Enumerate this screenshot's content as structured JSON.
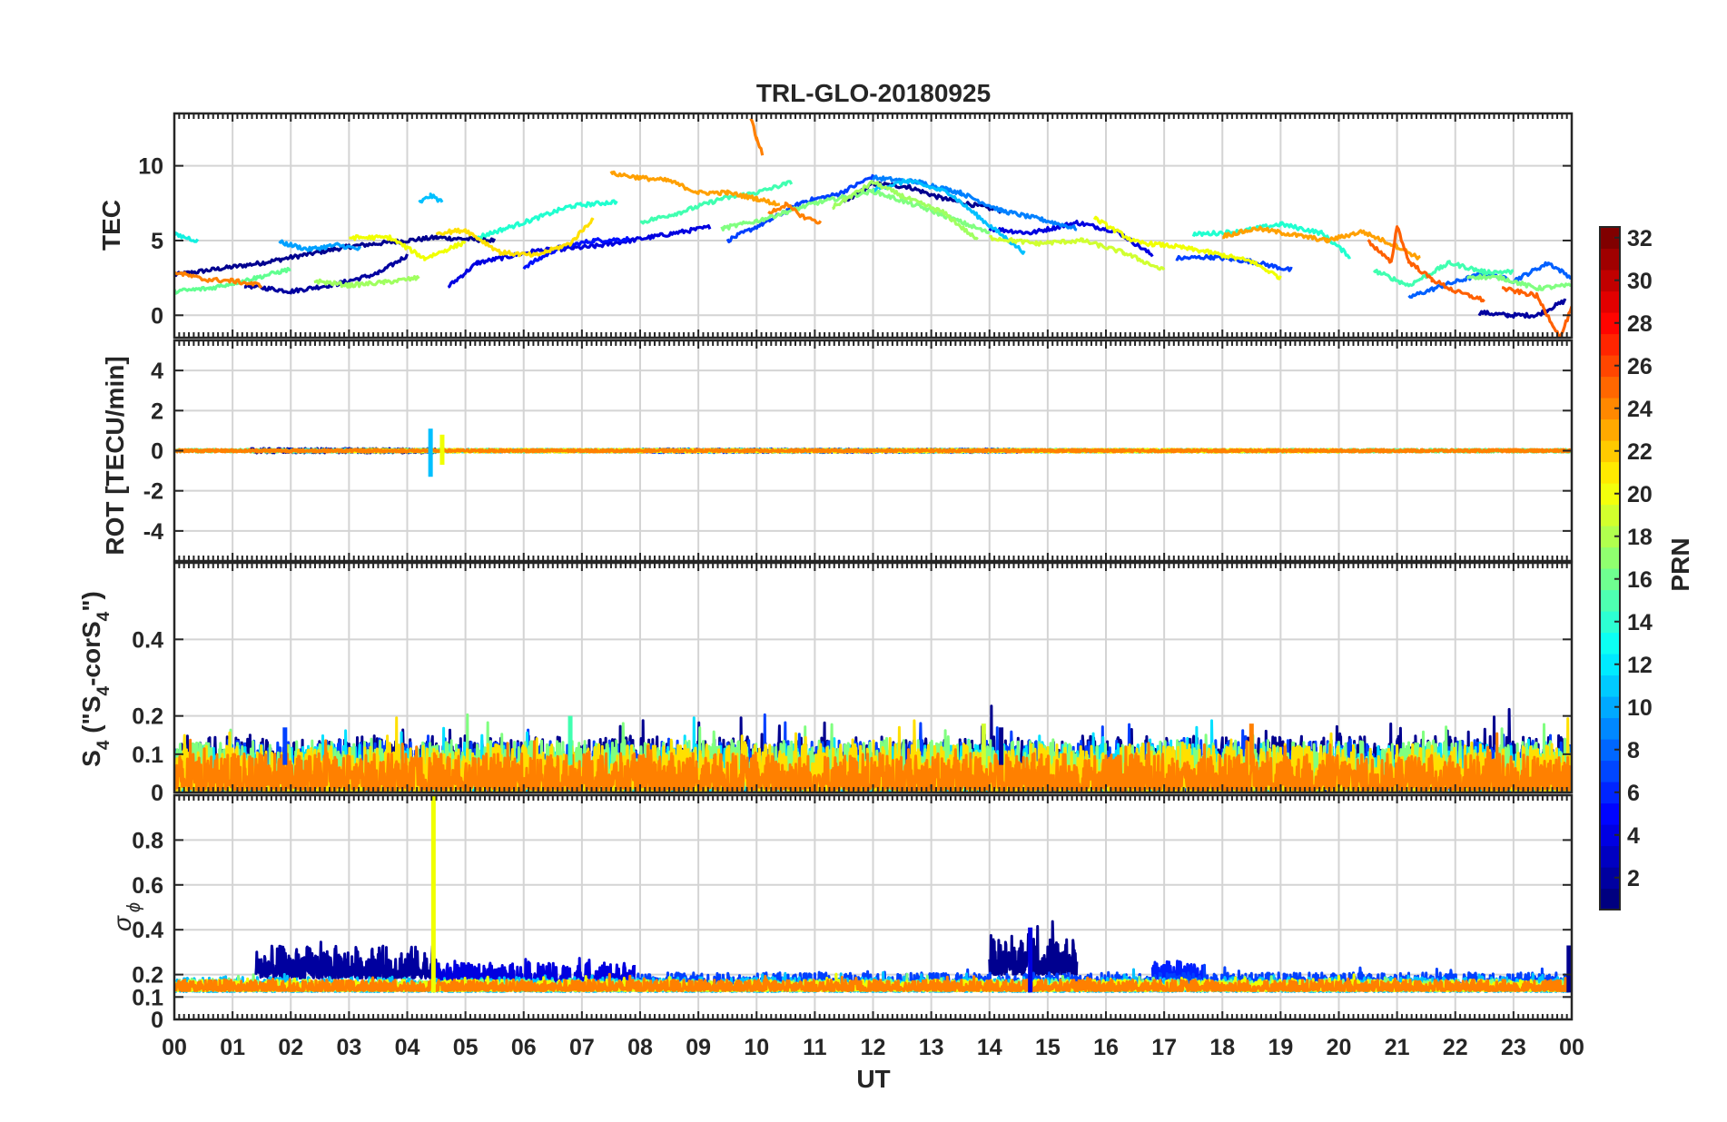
{
  "chart_data": [
    {
      "type": "line",
      "panel": "tec",
      "title": "TRL-GLO-20180925",
      "xlabel": "",
      "ylabel": "TEC",
      "xlim": [
        0,
        24
      ],
      "ylim": [
        -1.5,
        13.5
      ],
      "yticks": [
        0,
        5,
        10
      ],
      "ytick_labels": [
        "0",
        "5",
        "10"
      ],
      "grid": true,
      "series": [
        {
          "name": "PRN 2",
          "color": "#00008f",
          "x": [
            0.0,
            1.5,
            3.0,
            4.5,
            5.5
          ],
          "y": [
            2.7,
            3.5,
            4.6,
            5.2,
            5.0
          ]
        },
        {
          "name": "PRN 2b",
          "color": "#00008f",
          "x": [
            11.5,
            12.0,
            12.6,
            13.2,
            14.2
          ],
          "y": [
            7.5,
            8.8,
            8.6,
            7.8,
            7.0
          ]
        },
        {
          "name": "PRN 3",
          "color": "#00009f",
          "x": [
            1.2,
            2.0,
            2.8,
            3.5,
            4.0
          ],
          "y": [
            2.0,
            1.6,
            2.1,
            2.8,
            4.0
          ]
        },
        {
          "name": "PRN 3b",
          "color": "#00009f",
          "x": [
            22.4,
            22.9,
            23.4,
            23.9
          ],
          "y": [
            0.2,
            0.0,
            0.0,
            1.0
          ]
        },
        {
          "name": "PRN 5",
          "color": "#0000e0",
          "x": [
            4.7,
            5.2,
            6.2,
            7.2,
            8.3,
            9.2
          ],
          "y": [
            1.9,
            3.5,
            4.3,
            4.6,
            5.3,
            5.9
          ]
        },
        {
          "name": "PRN 5b",
          "color": "#0000e0",
          "x": [
            14.0,
            14.7,
            15.5,
            16.2,
            16.8
          ],
          "y": [
            5.8,
            5.5,
            6.2,
            5.6,
            4.0
          ]
        },
        {
          "name": "PRN 6",
          "color": "#0010ff",
          "x": [
            6.0,
            6.6,
            7.2,
            7.8
          ],
          "y": [
            3.2,
            4.5,
            5.0,
            5.1
          ]
        },
        {
          "name": "PRN 7",
          "color": "#0040ff",
          "x": [
            9.5,
            10.2,
            10.8,
            11.4,
            12.0
          ],
          "y": [
            5.0,
            6.3,
            7.6,
            8.1,
            9.3
          ]
        },
        {
          "name": "PRN 7b",
          "color": "#0040ff",
          "x": [
            17.2,
            17.8,
            18.5,
            19.2
          ],
          "y": [
            3.8,
            3.9,
            3.6,
            3.0
          ]
        },
        {
          "name": "PRN 8",
          "color": "#0060ff",
          "x": [
            21.2,
            21.8,
            22.5,
            23.0,
            23.6,
            24.0
          ],
          "y": [
            1.2,
            2.0,
            2.8,
            2.3,
            3.5,
            2.5
          ]
        },
        {
          "name": "PRN 9",
          "color": "#0080ff",
          "x": [
            12.0,
            12.8,
            13.5,
            14.2,
            14.9,
            15.5
          ],
          "y": [
            9.2,
            8.9,
            8.2,
            7.0,
            6.4,
            5.8
          ]
        },
        {
          "name": "PRN 10",
          "color": "#00a0ff",
          "x": [
            1.8,
            2.3,
            2.8,
            3.2
          ],
          "y": [
            4.9,
            4.4,
            4.7,
            4.4
          ]
        },
        {
          "name": "PRN 11",
          "color": "#00c0ff",
          "x": [
            4.2,
            4.4,
            4.6
          ],
          "y": [
            7.5,
            8.0,
            7.6
          ]
        },
        {
          "name": "PRN 11b",
          "color": "#00c0ff",
          "x": [
            12.0,
            12.6,
            13.3,
            14.0,
            14.6
          ],
          "y": [
            8.4,
            9.0,
            8.2,
            6.0,
            4.2
          ]
        },
        {
          "name": "PRN 13",
          "color": "#10f0e0",
          "x": [
            0.0,
            0.4
          ],
          "y": [
            5.4,
            5.0
          ]
        },
        {
          "name": "PRN 14",
          "color": "#20ffd0",
          "x": [
            5.2,
            6.0,
            6.8,
            7.6
          ],
          "y": [
            5.2,
            6.2,
            7.3,
            7.6
          ]
        },
        {
          "name": "PRN 14b",
          "color": "#20ffd0",
          "x": [
            17.5,
            18.3,
            19.0,
            19.7,
            20.2
          ],
          "y": [
            5.4,
            5.6,
            6.1,
            5.5,
            3.9
          ]
        },
        {
          "name": "PRN 15",
          "color": "#40ffb0",
          "x": [
            8.0,
            8.7,
            9.4,
            10.0,
            10.6
          ],
          "y": [
            6.2,
            6.9,
            7.8,
            8.2,
            8.9
          ]
        },
        {
          "name": "PRN 15b",
          "color": "#40ffb0",
          "x": [
            20.6,
            21.2,
            21.9,
            22.5,
            23.0
          ],
          "y": [
            3.0,
            2.0,
            3.5,
            2.9,
            2.9
          ]
        },
        {
          "name": "PRN 16",
          "color": "#60ff90",
          "x": [
            0.0,
            0.6,
            1.3,
            2.0
          ],
          "y": [
            1.6,
            1.8,
            2.4,
            3.1
          ]
        },
        {
          "name": "PRN 17",
          "color": "#80ff80",
          "x": [
            9.4,
            10.0,
            11.0,
            12.0,
            13.0,
            14.0
          ],
          "y": [
            5.8,
            6.3,
            7.5,
            8.3,
            7.0,
            5.5
          ]
        },
        {
          "name": "PRN 17b",
          "color": "#80ff80",
          "x": [
            22.2,
            22.8,
            23.4,
            24.0
          ],
          "y": [
            2.6,
            2.5,
            1.8,
            2.0
          ]
        },
        {
          "name": "PRN 18",
          "color": "#a0ff60",
          "x": [
            2.4,
            3.0,
            3.6,
            4.2
          ],
          "y": [
            2.3,
            2.0,
            2.2,
            2.5
          ]
        },
        {
          "name": "PRN 18b",
          "color": "#a0ff60",
          "x": [
            11.3,
            12.0,
            12.6,
            13.2,
            13.8
          ],
          "y": [
            7.2,
            8.9,
            7.8,
            6.9,
            5.0
          ]
        },
        {
          "name": "PRN 19",
          "color": "#d0ff30",
          "x": [
            14.0,
            14.8,
            15.6,
            16.3,
            17.0
          ],
          "y": [
            5.2,
            4.8,
            5.0,
            4.2,
            3.0
          ]
        },
        {
          "name": "PRN 20",
          "color": "#f0ff00",
          "x": [
            3.0,
            3.7,
            4.3,
            5.0
          ],
          "y": [
            5.2,
            5.2,
            3.8,
            4.9
          ]
        },
        {
          "name": "PRN 20b",
          "color": "#f0ff00",
          "x": [
            15.8,
            16.5,
            17.2,
            17.8,
            18.5,
            19.0
          ],
          "y": [
            6.5,
            4.9,
            4.6,
            4.2,
            3.6,
            2.5
          ]
        },
        {
          "name": "PRN 21",
          "color": "#ffe000",
          "x": [
            4.5,
            5.0,
            5.6,
            6.2,
            6.8,
            7.2
          ],
          "y": [
            5.5,
            5.7,
            4.2,
            4.0,
            4.8,
            6.5
          ]
        },
        {
          "name": "PRN 23",
          "color": "#ffa000",
          "x": [
            7.5,
            8.0,
            8.5,
            9.0,
            9.5,
            10.0,
            10.4
          ],
          "y": [
            9.5,
            9.2,
            9.0,
            8.2,
            8.2,
            7.8,
            7.4
          ]
        },
        {
          "name": "PRN 23b",
          "color": "#ffa000",
          "x": [
            18.0,
            18.6,
            19.2,
            19.8,
            20.4,
            21.0,
            21.4
          ],
          "y": [
            5.3,
            5.8,
            5.4,
            5.0,
            5.6,
            4.6,
            3.8
          ]
        },
        {
          "name": "PRN 24",
          "color": "#ff8000",
          "x": [
            0.0,
            0.5,
            1.0,
            1.5
          ],
          "y": [
            2.9,
            2.4,
            2.3,
            2.0
          ]
        },
        {
          "name": "PRN 24b",
          "color": "#ff8000",
          "x": [
            9.9,
            10.0,
            10.1
          ],
          "y": [
            13.3,
            11.8,
            10.8
          ]
        },
        {
          "name": "PRN 24c",
          "color": "#ff8000",
          "x": [
            10.2,
            10.5,
            10.8,
            11.1
          ],
          "y": [
            6.8,
            7.4,
            6.6,
            6.2
          ]
        },
        {
          "name": "PRN 25",
          "color": "#ff6000",
          "x": [
            20.5,
            20.9,
            21.0,
            21.2,
            21.6,
            22.0,
            22.5
          ],
          "y": [
            5.0,
            3.5,
            6.0,
            3.6,
            2.4,
            1.6,
            1.0
          ]
        },
        {
          "name": "PRN 25b",
          "color": "#ff6000",
          "x": [
            22.8,
            23.4,
            23.8,
            24.0
          ],
          "y": [
            1.8,
            1.3,
            -1.5,
            0.5
          ]
        }
      ]
    },
    {
      "type": "line",
      "panel": "rot",
      "title": "",
      "xlabel": "",
      "ylabel": "ROT [TECU/min]",
      "xlim": [
        0,
        24
      ],
      "ylim": [
        -5.5,
        5.5
      ],
      "yticks": [
        -4,
        -2,
        0,
        2,
        4
      ],
      "ytick_labels": [
        "-4",
        "-2",
        "0",
        "2",
        "4"
      ],
      "grid": true,
      "noise_series": [
        {
          "name": "PRN 3",
          "color": "#00009f",
          "x_start": 1.3,
          "x_end": 4.5,
          "amplitude": 0.12
        },
        {
          "name": "PRN 6",
          "color": "#0020ff",
          "x_start": 8.0,
          "x_end": 14.5,
          "amplitude": 0.1
        },
        {
          "name": "PRN 11",
          "color": "#00c0ff",
          "x_start": 2.0,
          "x_end": 16.0,
          "amplitude": 0.08
        },
        {
          "name": "PRN 16",
          "color": "#60ff90",
          "x_start": 0.0,
          "x_end": 24.0,
          "amplitude": 0.08
        },
        {
          "name": "PRN 20",
          "color": "#f0ff00",
          "x_start": 3.0,
          "x_end": 20.0,
          "amplitude": 0.08
        },
        {
          "name": "PRN 24",
          "color": "#ff8000",
          "x_start": 0.0,
          "x_end": 24.0,
          "amplitude": 0.07
        }
      ],
      "spikes": [
        {
          "color": "#00c0ff",
          "x": 4.4,
          "values": [
            1.1,
            -1.3
          ]
        },
        {
          "color": "#f0ff00",
          "x": 4.6,
          "values": [
            0.8,
            -0.7
          ]
        }
      ]
    },
    {
      "type": "line",
      "panel": "s4",
      "title": "",
      "xlabel": "",
      "ylabel": "S4 (\"S4-corS4\")",
      "ylabel_parts": [
        "S",
        "4",
        " (\"S",
        "4",
        "-corS",
        "4",
        "\")"
      ],
      "xlim": [
        0,
        24
      ],
      "ylim": [
        0,
        0.6
      ],
      "yticks": [
        0,
        0.1,
        0.2,
        0.4
      ],
      "ytick_labels": [
        "0",
        "0.1",
        "0.2",
        "0.4"
      ],
      "grid": true,
      "noise_series": [
        {
          "name": "PRN 2",
          "color": "#00008f",
          "x_start": 0.0,
          "x_end": 24.0,
          "baseline": 0.04,
          "amplitude": 0.09
        },
        {
          "name": "PRN 7",
          "color": "#0040ff",
          "x_start": 0.0,
          "x_end": 24.0,
          "baseline": 0.04,
          "amplitude": 0.08
        },
        {
          "name": "PRN 12",
          "color": "#00e0ff",
          "x_start": 0.0,
          "x_end": 24.0,
          "baseline": 0.03,
          "amplitude": 0.08
        },
        {
          "name": "PRN 17",
          "color": "#80ff80",
          "x_start": 0.0,
          "x_end": 24.0,
          "baseline": 0.04,
          "amplitude": 0.08
        },
        {
          "name": "PRN 21",
          "color": "#ffe000",
          "x_start": 0.0,
          "x_end": 24.0,
          "baseline": 0.03,
          "amplitude": 0.08
        },
        {
          "name": "PRN 24",
          "color": "#ff8000",
          "x_start": 0.0,
          "x_end": 24.0,
          "baseline": 0.03,
          "amplitude": 0.06
        }
      ],
      "spikes": [
        {
          "color": "#40ffb0",
          "x": 6.8,
          "values": [
            0.2
          ]
        },
        {
          "color": "#ff8000",
          "x": 18.5,
          "values": [
            0.18
          ]
        },
        {
          "color": "#00008f",
          "x": 14.2,
          "values": [
            0.17
          ]
        },
        {
          "color": "#0040ff",
          "x": 1.9,
          "values": [
            0.17
          ]
        },
        {
          "color": "#d0ff30",
          "x": 13.9,
          "values": [
            0.18
          ]
        }
      ]
    },
    {
      "type": "line",
      "panel": "sigma_phi",
      "title": "",
      "xlabel": "UT",
      "ylabel": "σ ϕ",
      "ylabel_parts": [
        "σ",
        "ϕ"
      ],
      "xlim": [
        0,
        24
      ],
      "ylim": [
        0,
        1.0
      ],
      "yticks": [
        0,
        0.1,
        0.2,
        0.4,
        0.6,
        0.8
      ],
      "ytick_labels": [
        "0",
        "0.1",
        "0.2",
        "0.4",
        "0.6",
        "0.8"
      ],
      "xtick_labels": [
        "00",
        "01",
        "02",
        "03",
        "04",
        "05",
        "06",
        "07",
        "08",
        "09",
        "10",
        "11",
        "12",
        "13",
        "14",
        "15",
        "16",
        "17",
        "18",
        "19",
        "20",
        "21",
        "22",
        "23",
        "00"
      ],
      "grid": true,
      "noise_series": [
        {
          "name": "PRN 3",
          "color": "#00009f",
          "x_start": 1.4,
          "x_end": 4.5,
          "baseline": 0.22,
          "amplitude": 0.09
        },
        {
          "name": "PRN 5",
          "color": "#0000e0",
          "x_start": 4.5,
          "x_end": 7.9,
          "baseline": 0.18,
          "amplitude": 0.06
        },
        {
          "name": "PRN 2",
          "color": "#00008f",
          "x_start": 14.0,
          "x_end": 15.5,
          "baseline": 0.24,
          "amplitude": 0.1
        },
        {
          "name": "PRN 6",
          "color": "#0020ff",
          "x_start": 16.8,
          "x_end": 17.7,
          "baseline": 0.2,
          "amplitude": 0.05
        },
        {
          "name": "PRN 7",
          "color": "#0040ff",
          "x_start": 7.8,
          "x_end": 24.0,
          "baseline": 0.16,
          "amplitude": 0.04
        },
        {
          "name": "PRN 11",
          "color": "#00c0ff",
          "x_start": 0.0,
          "x_end": 24.0,
          "baseline": 0.14,
          "amplitude": 0.04
        },
        {
          "name": "PRN 17",
          "color": "#80ff80",
          "x_start": 0.0,
          "x_end": 24.0,
          "baseline": 0.14,
          "amplitude": 0.03
        },
        {
          "name": "PRN 20",
          "color": "#f0ff00",
          "x_start": 0.0,
          "x_end": 24.0,
          "baseline": 0.14,
          "amplitude": 0.03
        },
        {
          "name": "PRN 24",
          "color": "#ff8000",
          "x_start": 0.0,
          "x_end": 24.0,
          "baseline": 0.14,
          "amplitude": 0.03
        }
      ],
      "spikes": [
        {
          "color": "#f0ff00",
          "x": 4.45,
          "values": [
            1.0
          ]
        },
        {
          "color": "#0000e0",
          "x": 14.7,
          "values": [
            0.41
          ]
        },
        {
          "color": "#00008f",
          "x": 23.95,
          "values": [
            0.33
          ]
        }
      ]
    }
  ],
  "colorbar": {
    "label": "PRN",
    "range": [
      1,
      32
    ],
    "ticks": [
      2,
      4,
      6,
      8,
      10,
      12,
      14,
      16,
      18,
      20,
      22,
      24,
      26,
      28,
      30,
      32
    ],
    "tick_labels": [
      "2",
      "4",
      "6",
      "8",
      "10",
      "12",
      "14",
      "16",
      "18",
      "20",
      "22",
      "24",
      "26",
      "28",
      "30",
      "32"
    ],
    "colormap": "jet"
  }
}
